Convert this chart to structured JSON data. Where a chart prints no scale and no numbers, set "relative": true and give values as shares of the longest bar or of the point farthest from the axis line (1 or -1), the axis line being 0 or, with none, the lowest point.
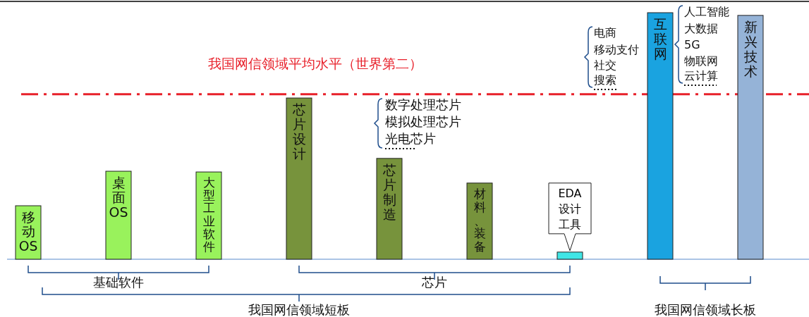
{
  "chart_data": {
    "type": "bar",
    "relative": true,
    "categories": [
      "移动OS",
      "桌面OS",
      "大型工业软件",
      "芯片设计",
      "芯片制造",
      "材料、装备",
      "EDA设计工具",
      "互联网",
      "新兴技术"
    ],
    "values": [
      0.217,
      0.357,
      0.354,
      0.654,
      0.409,
      0.309,
      0.029,
      1,
      0.989
    ],
    "colors": [
      "#99f25c",
      "#99f25c",
      "#99f25c",
      "#77933c",
      "#77933c",
      "#77933c",
      "#40e6e6",
      "#1aa3e0",
      "#95b3d7"
    ],
    "ref_lines": [
      {
        "axis": "y",
        "value": 0.669,
        "label": "我国网信领域平均水平（世界第二）",
        "color": "#e8202a",
        "line_style": "dashed"
      }
    ],
    "annotations": [
      "数字处理芯片",
      "模拟处理芯片",
      "光电芯片",
      "电商",
      "移动支付",
      "社交",
      "搜索",
      "人工智能",
      "大数据",
      "5G",
      "物联网",
      "云计算",
      "基础软件",
      "芯片",
      "我国网信领域短板",
      "我国网信领域长板"
    ]
  }
}
